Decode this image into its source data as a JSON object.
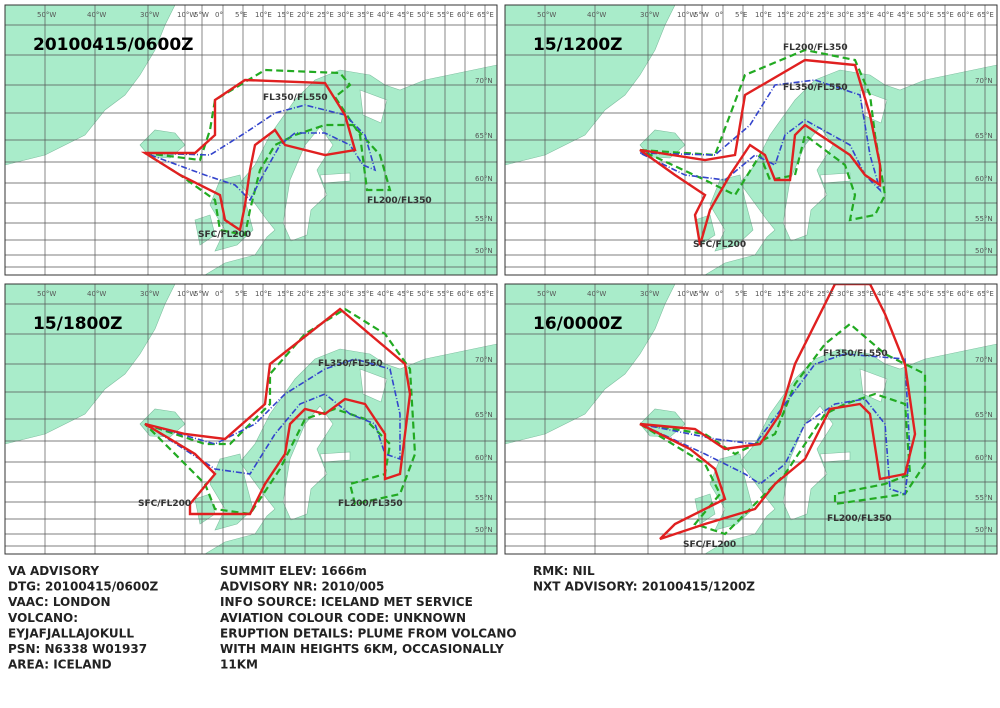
{
  "panels": [
    {
      "title": "20100415/0600Z",
      "labels": [
        "FL350/FL550",
        "FL200/FL350",
        "SFC/FL200"
      ]
    },
    {
      "title": "15/1200Z",
      "labels": [
        "FL200/FL350",
        "FL350/FL550",
        "SFC/FL200"
      ]
    },
    {
      "title": "15/1800Z",
      "labels": [
        "FL350/FL550",
        "SFC/FL200",
        "FL200/FL350"
      ]
    },
    {
      "title": "16/0000Z",
      "labels": [
        "FL350/FL550",
        "FL200/FL350",
        "SFC/FL200"
      ]
    }
  ],
  "longitude_labels": [
    "50°W",
    "40°W",
    "30°W",
    "10°W",
    "5°W",
    "0°",
    "5°E",
    "10°E",
    "15°E",
    "20°E",
    "25°E",
    "30°E",
    "35°E",
    "40°E",
    "45°E",
    "50°E",
    "55°E",
    "60°E",
    "65°E"
  ],
  "latitude_labels": [
    "70°N",
    "65°N",
    "60°N",
    "55°N",
    "50°N"
  ],
  "advisory": {
    "columns": [
      [
        "VA ADVISORY",
        "DTG:  20100415/0600Z",
        "VAAC:  LONDON",
        "VOLCANO:",
        "EYJAFJALLAJOKULL",
        "PSN:  N6338 W01937",
        "AREA:  ICELAND"
      ],
      [
        "SUMMIT ELEV:  1666m",
        "ADVISORY NR:  2010/005",
        "INFO SOURCE:  ICELAND MET SERVICE",
        "AVIATION COLOUR CODE:  UNKNOWN",
        "ERUPTION DETAILS:  PLUME FROM VOLCANO",
        "WITH MAIN HEIGHTS 6KM, OCCASIONALLY",
        "11KM"
      ],
      [
        "RMK:  NIL",
        "NXT ADVISORY:  20100415/1200Z"
      ]
    ]
  }
}
